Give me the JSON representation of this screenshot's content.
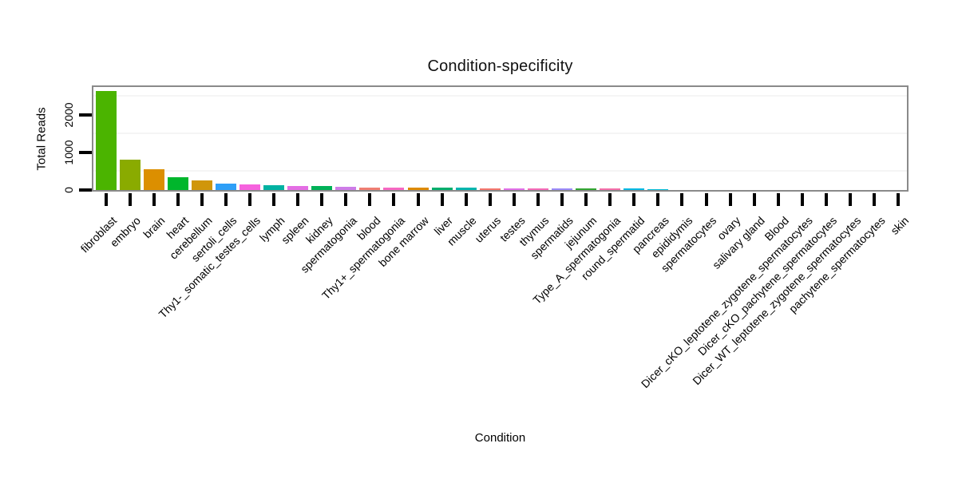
{
  "window": {
    "background": "#ffffff"
  },
  "chart_data": {
    "type": "bar",
    "title": "Condition-specificity",
    "xlabel": "Condition",
    "ylabel": "Total Reads",
    "ylim": [
      0,
      2800
    ],
    "yticks": [
      0,
      1000,
      2000
    ],
    "yticks_minor": [
      500,
      1500,
      2500
    ],
    "grid": "faint horizontal minor gridlines",
    "legend": "none",
    "x_label_rotation_deg": 45,
    "frame_color": "#8a8a8a",
    "tick_color": "#000000",
    "categories": [
      "fibroblast",
      "embryo",
      "brain",
      "heart",
      "cerebellum",
      "sertoli_cells",
      "Thy1-_somatic_testes_cells",
      "lymph",
      "spleen",
      "kidney",
      "spermatogonia",
      "blood",
      "Thy1+_spermatogonia",
      "bone marrow",
      "liver",
      "muscle",
      "uterus",
      "testes",
      "thymus",
      "spermatids",
      "jejunum",
      "Type_A_spermatogonia",
      "round_spermatid",
      "pancreas",
      "epididymis",
      "spermatocytes",
      "ovary",
      "salivary gland",
      "Blood",
      "Dicer_cKO_leptotene_zygotene_spermatocytes",
      "Dicer_cKO_pachytene_spermatocytes",
      "Dicer_WT_leptotene_zygotene_spermatocytes",
      "pachytene_spermatocytes",
      "skin"
    ],
    "values": [
      2630,
      800,
      560,
      335,
      265,
      180,
      150,
      125,
      115,
      100,
      80,
      72,
      68,
      62,
      58,
      55,
      48,
      45,
      42,
      40,
      38,
      36,
      34,
      32,
      10,
      8,
      6,
      5,
      4,
      3,
      3,
      2,
      2,
      1
    ],
    "colors": [
      "#4BB400",
      "#8AAB00",
      "#DC8F00",
      "#00B62C",
      "#D0960A",
      "#2E9FF7",
      "#F662DE",
      "#00B2A2",
      "#E46EE4",
      "#00B158",
      "#CE7CE8",
      "#F07E72",
      "#F668C2",
      "#DE8A00",
      "#00AE6C",
      "#00B5AE",
      "#F4766E",
      "#E170E8",
      "#F56BB8",
      "#9B8AF8",
      "#33A532",
      "#F46FA9",
      "#00B8E3",
      "#00BCD8",
      "#00B8E3",
      "#9590FF",
      "#D277F0",
      "#FF61C7",
      "#F8766D",
      "#E58700",
      "#C99800",
      "#A3A500",
      "#6BB100",
      "#00BF7D"
    ]
  }
}
